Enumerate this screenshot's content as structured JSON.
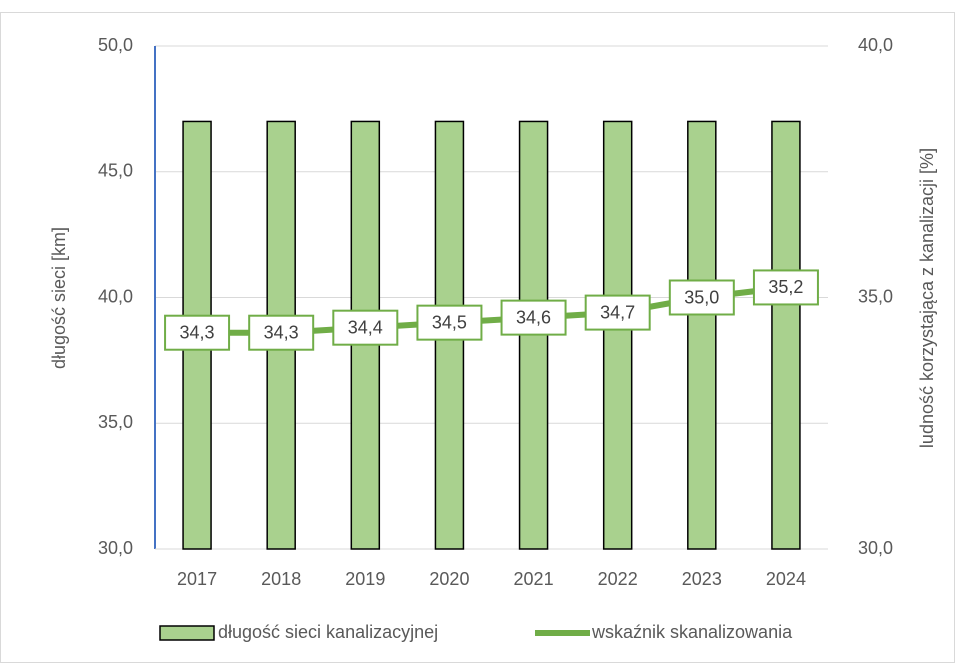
{
  "chart_data": {
    "type": "bar_line",
    "categories": [
      "2017",
      "2018",
      "2019",
      "2020",
      "2021",
      "2022",
      "2023",
      "2024"
    ],
    "ylabel": "długość sieci [km]",
    "y2label": "ludność korzystająca z kanalizacji [%]",
    "ylim": [
      30,
      50
    ],
    "yticks": [
      {
        "value": 30,
        "label": "30,0"
      },
      {
        "value": 35,
        "label": "35,0"
      },
      {
        "value": 40,
        "label": "40,0"
      },
      {
        "value": 45,
        "label": "45,0"
      },
      {
        "value": 50,
        "label": "50,0"
      }
    ],
    "y2lim": [
      30,
      40
    ],
    "y2ticks": [
      {
        "value": 30,
        "label": "30,0"
      },
      {
        "value": 35,
        "label": "35,0"
      },
      {
        "value": 40,
        "label": "40,0"
      }
    ],
    "grid": true,
    "legend": "bottom",
    "series": [
      {
        "name": "długość sieci kanalizacyjnej",
        "type": "bar",
        "color": "#a9d18e",
        "values": [
          47.0,
          47.0,
          47.0,
          47.0,
          47.0,
          47.0,
          47.0,
          47.0
        ]
      },
      {
        "name": "wskaźnik skanalizowania",
        "type": "line",
        "axis": "y2",
        "color": "#70ad47",
        "values": [
          34.3,
          34.3,
          34.4,
          34.5,
          34.6,
          34.7,
          35.0,
          35.2
        ],
        "value_labels": [
          "34,3",
          "34,3",
          "34,4",
          "34,5",
          "34,6",
          "34,7",
          "35,0",
          "35,2"
        ]
      }
    ]
  }
}
